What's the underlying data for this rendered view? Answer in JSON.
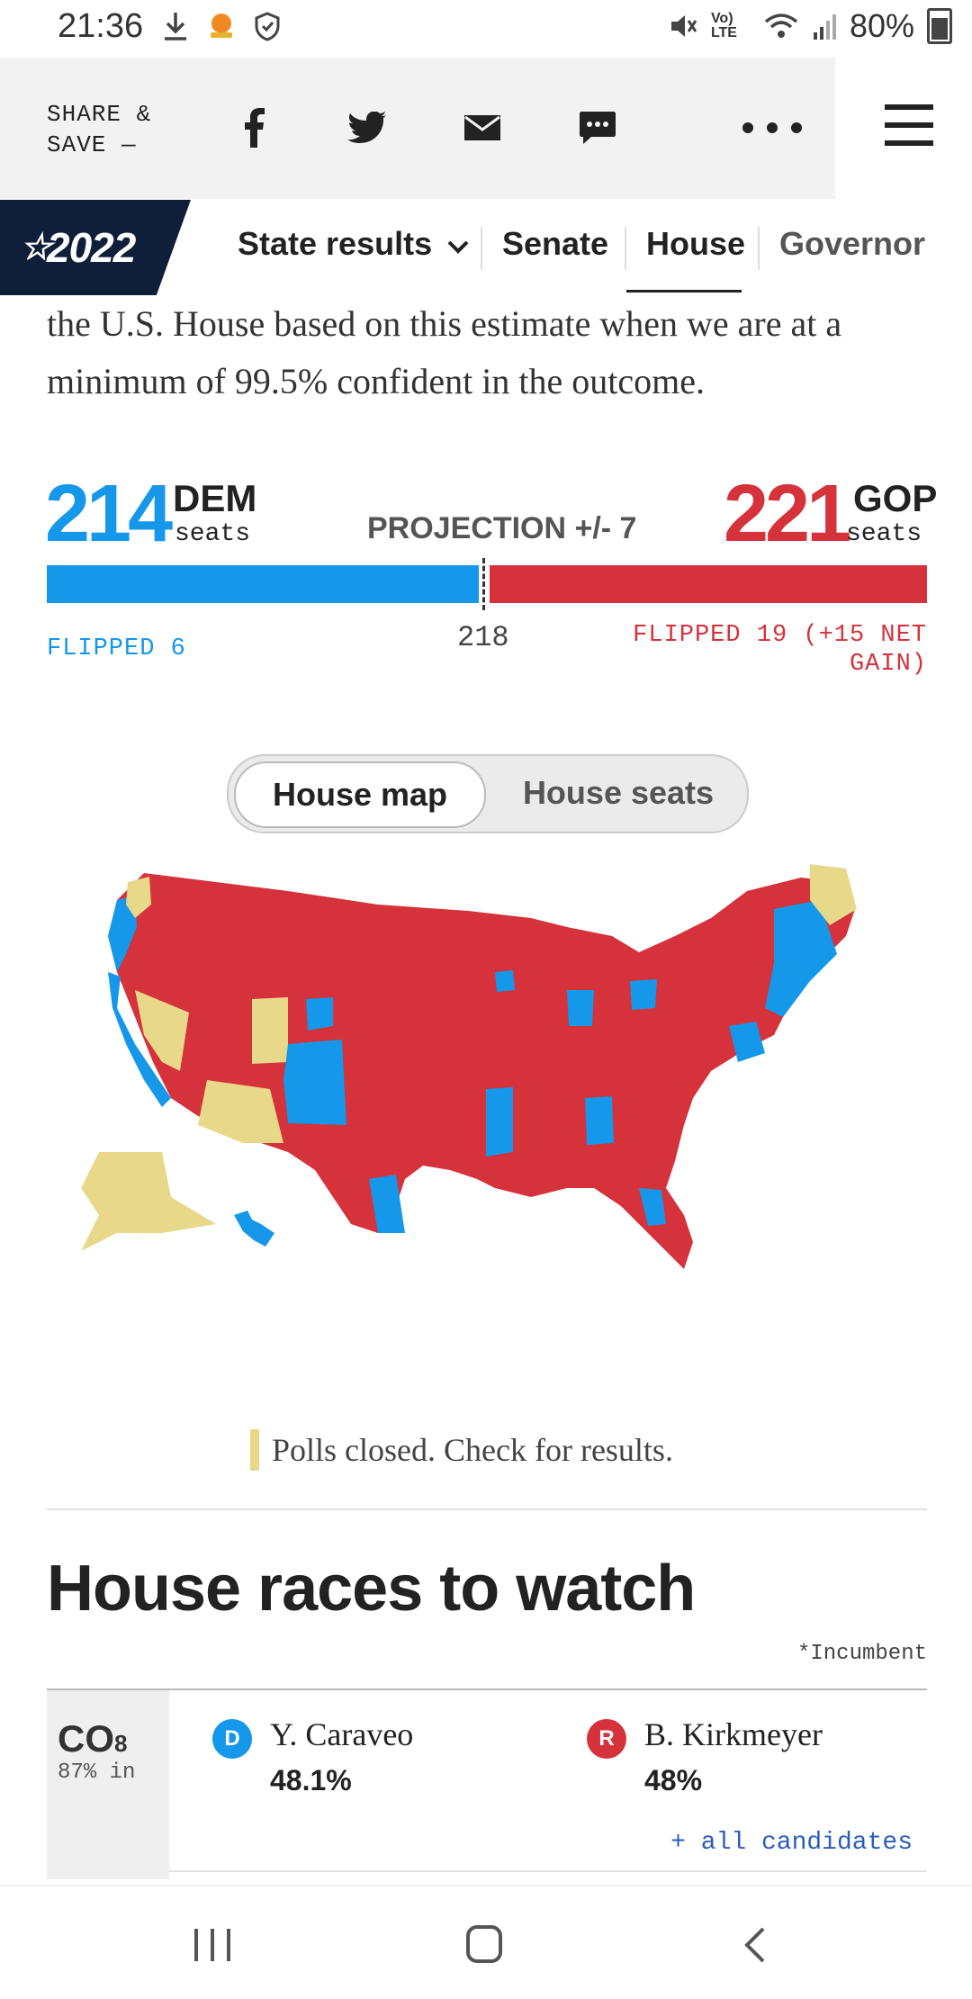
{
  "status_bar": {
    "time": "21:36",
    "network": "Vo) LTE",
    "battery": "80%"
  },
  "share": {
    "label_line1": "SHARE &",
    "label_line2": "SAVE —",
    "icons": [
      "facebook-icon",
      "twitter-icon",
      "email-icon",
      "sms-icon",
      "more-icon"
    ]
  },
  "nav": {
    "badge": "2022",
    "items": [
      "State results",
      "Senate",
      "House",
      "Governor"
    ],
    "active": "House"
  },
  "article": {
    "text": "the U.S. House based on this estimate when we are at a minimum of 99.5% confident in the outcome."
  },
  "summary": {
    "dem_seats": "214",
    "dem_label": "DEM",
    "gop_seats": "221",
    "gop_label": "GOP",
    "seats_word": "seats",
    "projection": "PROJECTION +/- 7",
    "threshold": "218",
    "dem_flipped": "FLIPPED 6",
    "gop_flipped_line1": "FLIPPED 19 (+15 NET",
    "gop_flipped_line2": "GAIN)",
    "colors": {
      "dem": "#1597ea",
      "gop": "#d5323b",
      "pending": "#e8d88a"
    }
  },
  "toggle": {
    "active": "House map",
    "inactive": "House seats"
  },
  "map": {
    "legend": "Polls closed. Check for results."
  },
  "races": {
    "title": "House races to watch",
    "incumbent_note": "*Incumbent",
    "items": [
      {
        "state": "CO",
        "district": "8",
        "reporting": "87% in",
        "dem_badge": "D",
        "dem_name": "Y. Caraveo",
        "dem_pct": "48.1%",
        "gop_badge": "R",
        "gop_name": "B. Kirkmeyer",
        "gop_pct": "48%",
        "all_candidates": "+ all candidates"
      }
    ]
  }
}
